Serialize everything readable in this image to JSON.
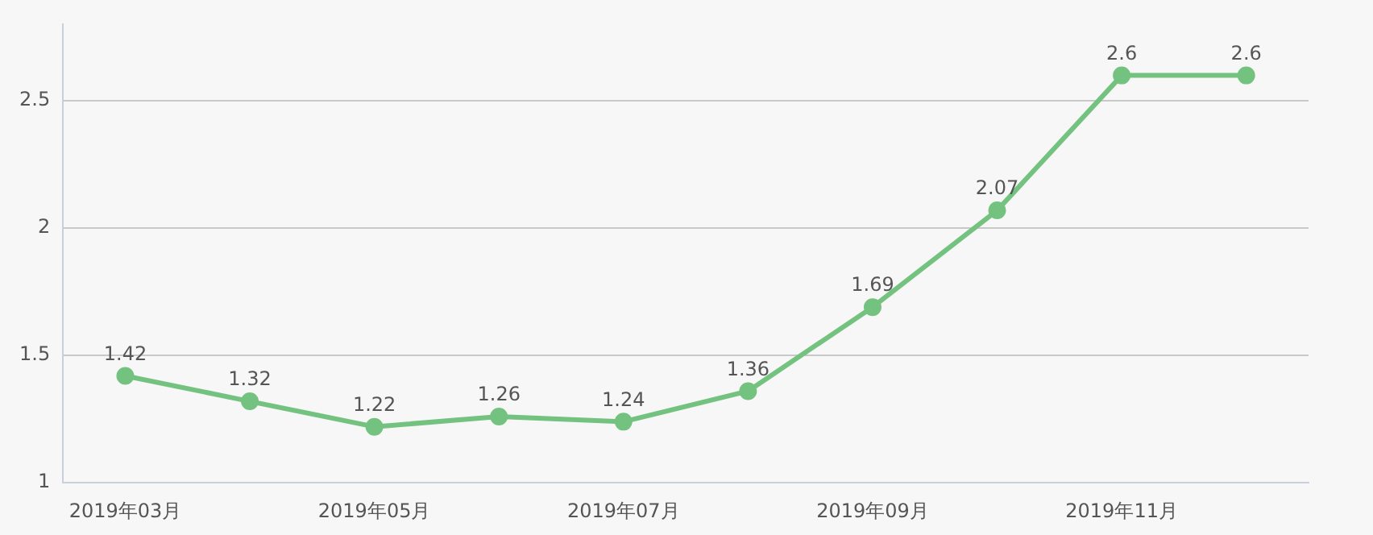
{
  "chart_data": {
    "type": "line",
    "categories": [
      "2019年03月",
      null,
      "2019年05月",
      null,
      "2019年07月",
      null,
      "2019年09月",
      null,
      "2019年11月",
      null
    ],
    "series": [
      {
        "color": "#74c27f",
        "values": [
          1.42,
          1.32,
          1.22,
          1.26,
          1.24,
          1.36,
          1.69,
          2.07,
          2.6,
          2.6
        ]
      }
    ],
    "ylim": [
      1,
      2.8
    ],
    "yticks": [
      1,
      1.5,
      2,
      2.5
    ],
    "grid": "y",
    "data_labels": true,
    "marker": "circle",
    "line_style": "solid"
  }
}
